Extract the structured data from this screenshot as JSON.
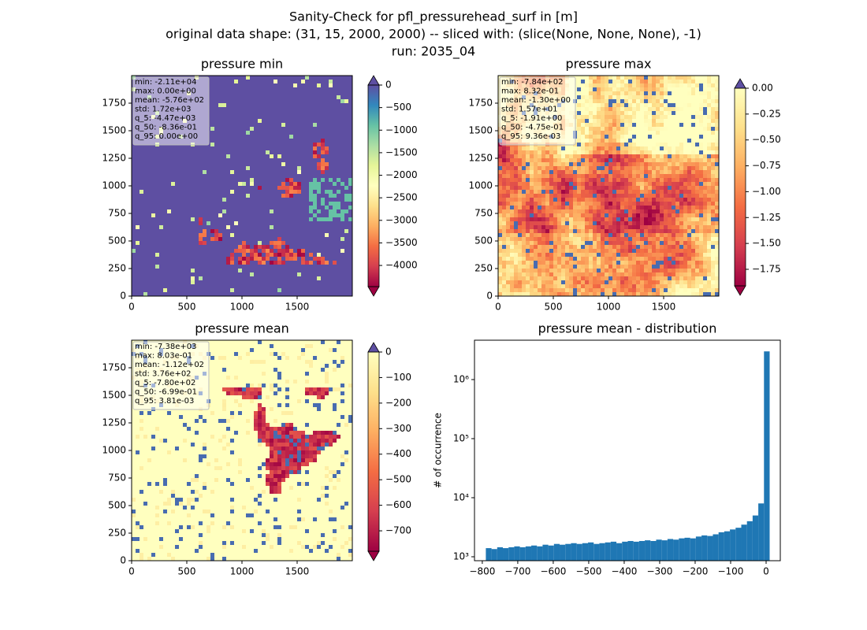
{
  "figure": {
    "title_lines": [
      "Sanity-Check for pfl_pressurehead_surf in [m]",
      "original data shape: (31, 15, 2000, 2000) -- sliced with: (slice(None, None, None), -1)",
      "run: 2035_04"
    ]
  },
  "chart_data": [
    {
      "type": "image",
      "title": "pressure min",
      "xlim": [
        0,
        2000
      ],
      "ylim": [
        0,
        2000
      ],
      "xticks": [
        0,
        500,
        1000,
        1500
      ],
      "yticks": [
        0,
        250,
        500,
        750,
        1000,
        1250,
        1500,
        1750
      ],
      "stats": [
        "min: -2.11e+04",
        "max: 0.00e+00",
        "mean: -5.76e+02",
        "std: 1.72e+03",
        "q_5: -4.47e+03",
        "q_50: -8.36e-01",
        "q_95: 0.00e+00"
      ],
      "clim": [
        -4470,
        0
      ],
      "cticks": [
        {
          "value": 0,
          "label": "0"
        },
        {
          "value": -500,
          "label": "−500"
        },
        {
          "value": -1000,
          "label": "−1000"
        },
        {
          "value": -1500,
          "label": "−1500"
        },
        {
          "value": -2000,
          "label": "−2000"
        },
        {
          "value": -2500,
          "label": "−2500"
        },
        {
          "value": -3000,
          "label": "−3000"
        },
        {
          "value": -3500,
          "label": "−3500"
        },
        {
          "value": -4000,
          "label": "−4000"
        }
      ]
    },
    {
      "type": "image",
      "title": "pressure max",
      "xlim": [
        0,
        2000
      ],
      "ylim": [
        0,
        2000
      ],
      "xticks": [
        0,
        500,
        1000,
        1500
      ],
      "yticks": [
        0,
        250,
        500,
        750,
        1000,
        1250,
        1500,
        1750
      ],
      "stats": [
        "min: -7.84e+02",
        "max: 8.32e-01",
        "mean: -1.30e+00",
        "std: 1.57e+01",
        "q_5: -1.91e+00",
        "q_50: -4.75e-01",
        "q_95: 9.36e-03"
      ],
      "clim": [
        -1.91,
        0
      ],
      "cticks": [
        {
          "value": 0,
          "label": "0.00"
        },
        {
          "value": -0.25,
          "label": "−0.25"
        },
        {
          "value": -0.5,
          "label": "−0.50"
        },
        {
          "value": -0.75,
          "label": "−0.75"
        },
        {
          "value": -1,
          "label": "−1.00"
        },
        {
          "value": -1.25,
          "label": "−1.25"
        },
        {
          "value": -1.5,
          "label": "−1.50"
        },
        {
          "value": -1.75,
          "label": "−1.75"
        }
      ]
    },
    {
      "type": "image",
      "title": "pressure mean",
      "xlim": [
        0,
        2000
      ],
      "ylim": [
        0,
        2000
      ],
      "xticks": [
        0,
        500,
        1000,
        1500
      ],
      "yticks": [
        0,
        250,
        500,
        750,
        1000,
        1250,
        1500,
        1750
      ],
      "stats": [
        "min: -7.38e+03",
        "max: 8.03e-01",
        "mean: -1.12e+02",
        "std: 3.76e+02",
        "q_5: -7.80e+02",
        "q_50: -6.99e-01",
        "q_95: 3.81e-03"
      ],
      "clim": [
        -780,
        0
      ],
      "cticks": [
        {
          "value": 0,
          "label": "0"
        },
        {
          "value": -100,
          "label": "−100"
        },
        {
          "value": -200,
          "label": "−200"
        },
        {
          "value": -300,
          "label": "−300"
        },
        {
          "value": -400,
          "label": "−400"
        },
        {
          "value": -500,
          "label": "−500"
        },
        {
          "value": -600,
          "label": "−600"
        },
        {
          "value": -700,
          "label": "−700"
        }
      ]
    },
    {
      "type": "histogram",
      "title": "pressure mean - distribution",
      "ylabel": "# of occurrence",
      "color": "#1f77b4",
      "log_y": true,
      "bins": [
        -790,
        -774,
        -758,
        -742,
        -726,
        -710,
        -694,
        -678,
        -662,
        -646,
        -630,
        -614,
        -598,
        -582,
        -566,
        -550,
        -534,
        -518,
        -502,
        -486,
        -470,
        -454,
        -438,
        -422,
        -406,
        -390,
        -374,
        -358,
        -342,
        -326,
        -310,
        -294,
        -278,
        -262,
        -246,
        -230,
        -214,
        -198,
        -182,
        -166,
        -150,
        -134,
        -118,
        -102,
        -86,
        -70,
        -54,
        -38,
        -22,
        -6,
        10
      ],
      "counts": [
        1400,
        1350,
        1450,
        1400,
        1450,
        1500,
        1450,
        1500,
        1550,
        1500,
        1600,
        1550,
        1650,
        1600,
        1650,
        1700,
        1650,
        1700,
        1750,
        1650,
        1700,
        1750,
        1800,
        1700,
        1800,
        1850,
        1800,
        1850,
        1900,
        1850,
        1950,
        1900,
        2000,
        1950,
        2050,
        2100,
        2050,
        2200,
        2300,
        2250,
        2400,
        2600,
        2700,
        2900,
        3100,
        3500,
        4000,
        5000,
        8000,
        3000000
      ],
      "xlim": [
        -822,
        40
      ],
      "ylim": [
        858,
        4640000
      ],
      "xticks": [
        {
          "value": -800,
          "label": "−800"
        },
        {
          "value": -700,
          "label": "−700"
        },
        {
          "value": -600,
          "label": "−600"
        },
        {
          "value": -500,
          "label": "−500"
        },
        {
          "value": -400,
          "label": "−400"
        },
        {
          "value": -300,
          "label": "−300"
        },
        {
          "value": -200,
          "label": "−200"
        },
        {
          "value": -100,
          "label": "−100"
        },
        0
      ],
      "yticks": [
        {
          "value": 1000,
          "label": "10³"
        },
        {
          "value": 10000,
          "label": "10⁴"
        },
        {
          "value": 100000,
          "label": "10⁵"
        },
        {
          "value": 1000000,
          "label": "10⁶"
        }
      ]
    }
  ]
}
